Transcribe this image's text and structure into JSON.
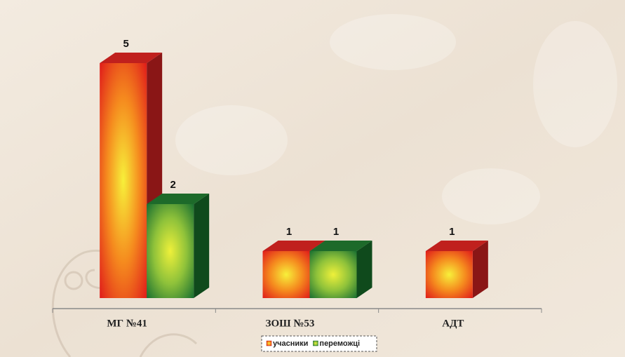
{
  "chart_data": {
    "type": "bar3d",
    "categories": [
      "МГ №41",
      "ЗОШ №53",
      "АДТ"
    ],
    "series": [
      {
        "name": "учасники",
        "color": "#e8281c",
        "values": [
          5,
          1,
          1
        ]
      },
      {
        "name": "переможці",
        "color": "#1e7a32",
        "values": [
          2,
          1,
          null
        ]
      }
    ],
    "data_labels": true,
    "legend": "bottom"
  }
}
